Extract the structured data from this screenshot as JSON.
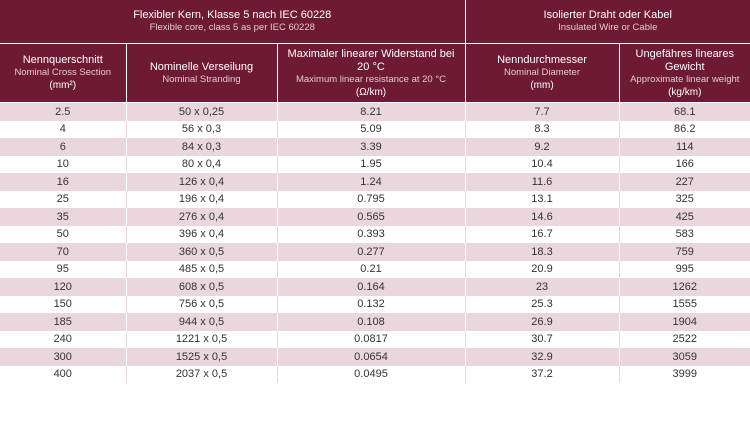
{
  "header": {
    "group1": {
      "de": "Flexibler Kern, Klasse 5 nach IEC 60228",
      "en": "Flexible core, class 5 as per IEC 60228"
    },
    "group2": {
      "de": "Isolierter Draht oder Kabel",
      "en": "Insulated Wire or Cable"
    },
    "columns": [
      {
        "de": "Nennquerschnitt",
        "en": "Nominal Cross Section",
        "unit": "(mm²)"
      },
      {
        "de": "Nominelle Verseilung",
        "en": "Nominal Stranding",
        "unit": ""
      },
      {
        "de": "Maximaler linearer Widerstand bei 20 °C",
        "en": "Maximum linear resistance at 20 °C",
        "unit": "(Ω/km)"
      },
      {
        "de": "Nenndurchmesser",
        "en": "Nominal Diameter",
        "unit": "(mm)"
      },
      {
        "de": "Ungefähres lineares Gewicht",
        "en": "Approximate linear weight",
        "unit": "(kg/km)"
      }
    ]
  },
  "rows": [
    [
      "2.5",
      "50 x 0,25",
      "8.21",
      "7.7",
      "68.1"
    ],
    [
      "4",
      "56 x  0,3",
      "5.09",
      "8.3",
      "86.2"
    ],
    [
      "6",
      "84 x 0,3",
      "3.39",
      "9.2",
      "114"
    ],
    [
      "10",
      "80 x 0,4",
      "1.95",
      "10.4",
      "166"
    ],
    [
      "16",
      "126 x 0,4",
      "1.24",
      "11.6",
      "227"
    ],
    [
      "25",
      "196 x 0,4",
      "0.795",
      "13.1",
      "325"
    ],
    [
      "35",
      "276 x 0,4",
      "0.565",
      "14.6",
      "425"
    ],
    [
      "50",
      "396 x 0,4",
      "0.393",
      "16.7",
      "583"
    ],
    [
      "70",
      "360 x 0,5",
      "0.277",
      "18.3",
      "759"
    ],
    [
      "95",
      "485 x 0,5",
      "0.21",
      "20.9",
      "995"
    ],
    [
      "120",
      "608 x 0,5",
      "0.164",
      "23",
      "1262"
    ],
    [
      "150",
      "756 x 0,5",
      "0.132",
      "25.3",
      "1555"
    ],
    [
      "185",
      "944 x 0,5",
      "0.108",
      "26.9",
      "1904"
    ],
    [
      "240",
      "1221 x 0,5",
      "0.0817",
      "30.7",
      "2522"
    ],
    [
      "300",
      "1525 x 0,5",
      "0.0654",
      "32.9",
      "3059"
    ],
    [
      "400",
      "2037 x 0,5",
      "0.0495",
      "37.2",
      "3999"
    ]
  ]
}
